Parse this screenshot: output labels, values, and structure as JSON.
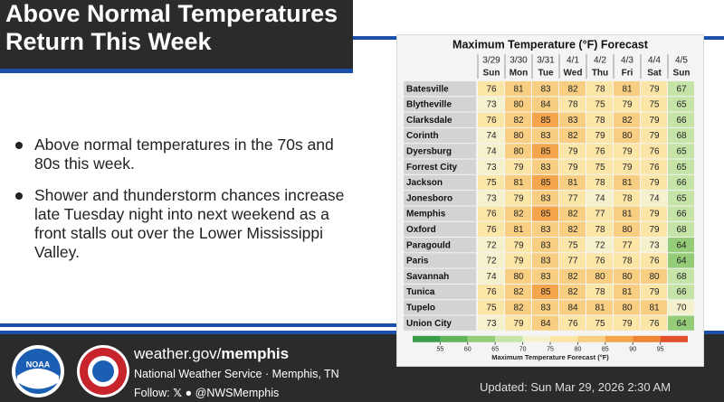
{
  "header": {
    "title_lines": [
      "Above Normal Temperatures",
      "Return This Week"
    ]
  },
  "bullets": [
    "Above normal temperatures in the 70s and 80s this week.",
    "Shower and thunderstorm chances increase late Tuesday night into next weekend as a front stalls out over the Lower Mississippi Valley."
  ],
  "table": {
    "title": "Maximum Temperature (°F) Forecast",
    "columns": [
      {
        "date": "3/29",
        "day": "Sun"
      },
      {
        "date": "3/30",
        "day": "Mon"
      },
      {
        "date": "3/31",
        "day": "Tue"
      },
      {
        "date": "4/1",
        "day": "Wed"
      },
      {
        "date": "4/2",
        "day": "Thu"
      },
      {
        "date": "4/3",
        "day": "Fri"
      },
      {
        "date": "4/4",
        "day": "Sat"
      },
      {
        "date": "4/5",
        "day": "Sun"
      }
    ],
    "rows": [
      {
        "city": "Batesville",
        "values": [
          76,
          81,
          83,
          82,
          78,
          81,
          79,
          67
        ]
      },
      {
        "city": "Blytheville",
        "values": [
          73,
          80,
          84,
          78,
          75,
          79,
          75,
          65
        ]
      },
      {
        "city": "Clarksdale",
        "values": [
          76,
          82,
          85,
          83,
          78,
          82,
          79,
          66
        ]
      },
      {
        "city": "Corinth",
        "values": [
          74,
          80,
          83,
          82,
          79,
          80,
          79,
          68
        ]
      },
      {
        "city": "Dyersburg",
        "values": [
          74,
          80,
          85,
          79,
          76,
          79,
          76,
          65
        ]
      },
      {
        "city": "Forrest City",
        "values": [
          73,
          79,
          83,
          79,
          75,
          79,
          76,
          65
        ]
      },
      {
        "city": "Jackson",
        "values": [
          75,
          81,
          85,
          81,
          78,
          81,
          79,
          66
        ]
      },
      {
        "city": "Jonesboro",
        "values": [
          73,
          79,
          83,
          77,
          74,
          78,
          74,
          65
        ]
      },
      {
        "city": "Memphis",
        "values": [
          76,
          82,
          85,
          82,
          77,
          81,
          79,
          66
        ]
      },
      {
        "city": "Oxford",
        "values": [
          76,
          81,
          83,
          82,
          78,
          80,
          79,
          68
        ]
      },
      {
        "city": "Paragould",
        "values": [
          72,
          79,
          83,
          75,
          72,
          77,
          73,
          64
        ]
      },
      {
        "city": "Paris",
        "values": [
          72,
          79,
          83,
          77,
          76,
          78,
          76,
          64
        ]
      },
      {
        "city": "Savannah",
        "values": [
          74,
          80,
          83,
          82,
          80,
          80,
          80,
          68
        ]
      },
      {
        "city": "Tunica",
        "values": [
          76,
          82,
          85,
          82,
          78,
          81,
          79,
          66
        ]
      },
      {
        "city": "Tupelo",
        "values": [
          75,
          82,
          83,
          84,
          81,
          80,
          81,
          70
        ]
      },
      {
        "city": "Union City",
        "values": [
          73,
          79,
          84,
          76,
          75,
          79,
          76,
          64
        ]
      }
    ],
    "colorbar": {
      "ticks": [
        55,
        60,
        65,
        70,
        75,
        80,
        85,
        90,
        95
      ],
      "colors": [
        "#3a9d4a",
        "#62b45a",
        "#95cc78",
        "#c6e3a8",
        "#f4f1cc",
        "#fbe6a8",
        "#f8cf82",
        "#f5a64c",
        "#ef8435",
        "#e2502a"
      ],
      "label": "Maximum Temperature Forecast (°F)"
    }
  },
  "logos": {
    "noaa": "NOAA"
  },
  "footer": {
    "site_prefix": "weather.gov/",
    "site_bold": "memphis",
    "office": "National Weather Service · Memphis, TN",
    "follow": "Follow:",
    "handle": "@NWSMemphis",
    "updated": "Updated: Sun Mar 29, 2026 2:30 AM"
  }
}
